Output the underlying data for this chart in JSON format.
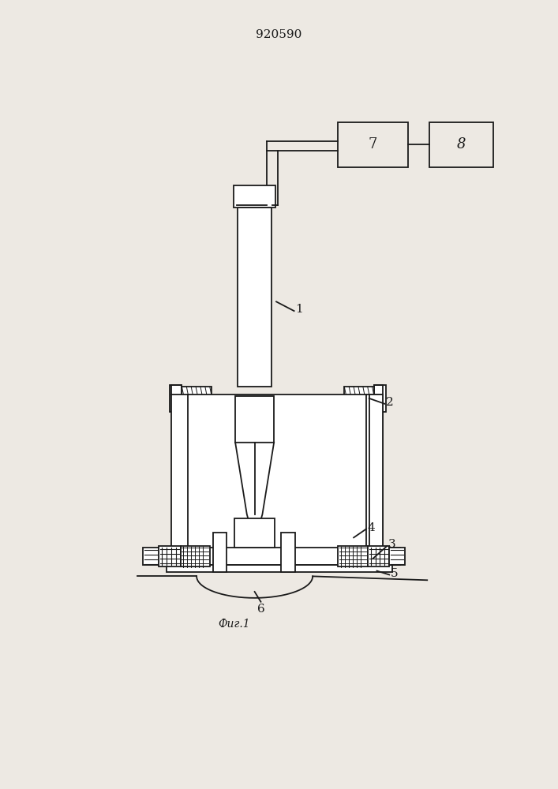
{
  "title": "920590",
  "fig_label": "Фиг.1",
  "background_color": "#ede9e3",
  "line_color": "#1a1a1a",
  "lw": 1.3
}
